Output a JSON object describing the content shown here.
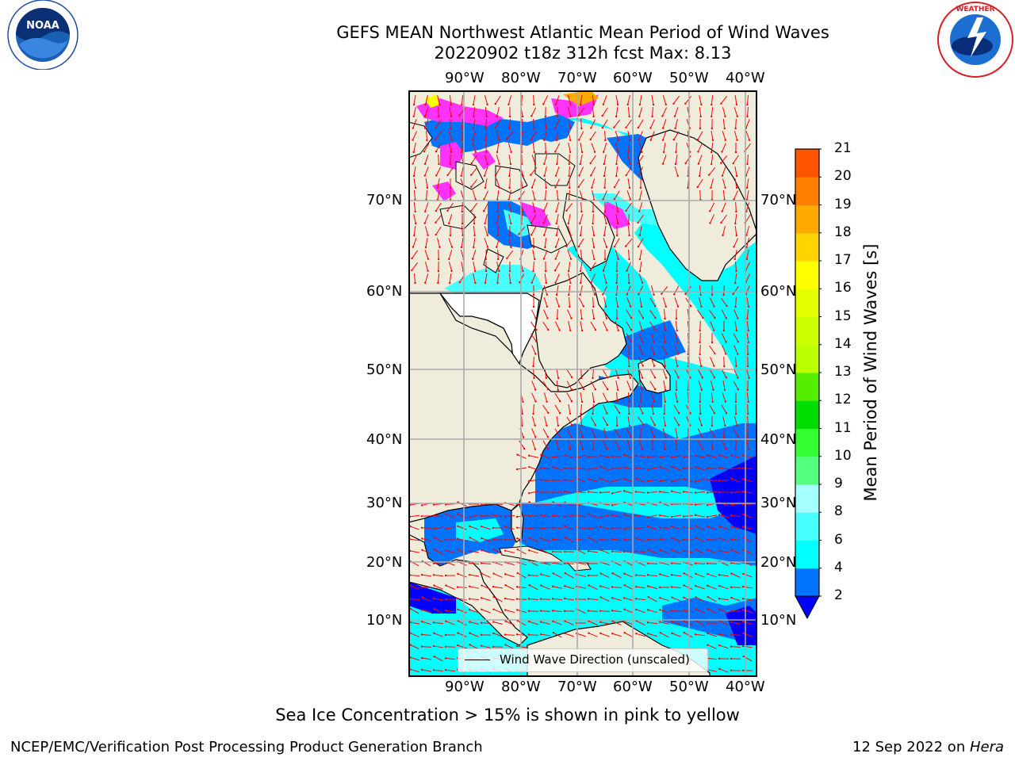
{
  "title": {
    "line1": "GEFS MEAN Northwest Atlantic Mean Period of Wind Waves",
    "line2": "20220902 t18z 312h fcst   Max: 8.13"
  },
  "map": {
    "lon_labels": [
      "90°W",
      "80°W",
      "70°W",
      "60°W",
      "50°W",
      "40°W"
    ],
    "lat_labels": [
      "70°N",
      "60°N",
      "50°N",
      "40°N",
      "30°N",
      "20°N",
      "10°N"
    ],
    "land_color": "#efecdc",
    "ocean_colors": {
      "period_2_4": "#0073ff",
      "period_4_6": "#00ffff",
      "period_6_8": "#48ffff",
      "below_2": "#0000ff"
    },
    "sea_ice_color": "#ff33ff",
    "arrow_color": "#ff0000"
  },
  "legend": {
    "label": "Wind Wave Direction (unscaled)"
  },
  "colorbar": {
    "label": "Mean Period of Wind Waves [s]",
    "ticks": [
      "2",
      "4",
      "6",
      "8",
      "9",
      "10",
      "11",
      "12",
      "13",
      "14",
      "15",
      "16",
      "17",
      "18",
      "19",
      "20",
      "21"
    ],
    "colors": [
      "#0073ff",
      "#00ffff",
      "#48ffff",
      "#a6ffff",
      "#55ff80",
      "#33ff33",
      "#00dd00",
      "#55ee00",
      "#bbff00",
      "#ccff00",
      "#e6ff00",
      "#ffff00",
      "#ffd400",
      "#ffaa00",
      "#ff8000",
      "#ff5500",
      "#ff2a00",
      "#ff0000"
    ],
    "under_color": "#0000ff"
  },
  "chart_data": {
    "type": "heatmap",
    "title": "GEFS MEAN Northwest Atlantic Mean Period of Wind Waves",
    "subtitle": "20220902 t18z 312h fcst   Max: 8.13",
    "units": "s",
    "max_value": 8.13,
    "color_levels": [
      2,
      4,
      6,
      8,
      9,
      10,
      11,
      12,
      13,
      14,
      15,
      16,
      17,
      18,
      19,
      20,
      21
    ]
  },
  "note": "Sea Ice Concentration > 15% is shown in pink to yellow",
  "footer": {
    "left": "NCEP/EMC/Verification Post Processing Product Generation Branch",
    "right_date": "12 Sep 2022 on ",
    "right_host": "Hera"
  },
  "logos": {
    "noaa": "NOAA",
    "nws": "NATIONAL WEATHER SERVICE"
  }
}
